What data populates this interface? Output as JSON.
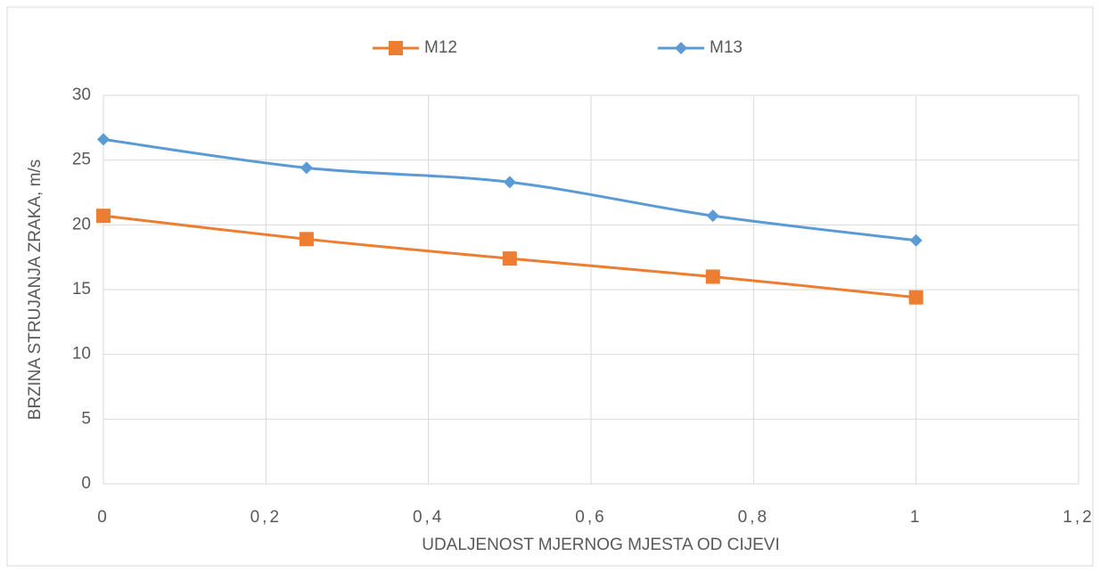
{
  "chart_data": {
    "type": "line",
    "smooth": true,
    "x": [
      0,
      0.25,
      0.5,
      0.75,
      1
    ],
    "series": [
      {
        "name": "M12",
        "color": "#ed7d31",
        "marker": "square",
        "values": [
          20.7,
          18.9,
          17.4,
          16.0,
          14.4
        ]
      },
      {
        "name": "M13",
        "color": "#5b9bd5",
        "marker": "diamond",
        "values": [
          26.6,
          24.4,
          23.3,
          20.7,
          18.8
        ]
      }
    ],
    "xlabel": "UDALJENOST MJERNOG MJESTA OD CIJEVI",
    "ylabel": "BRZINA STRUJANJA ZRAKA, m/s",
    "xlim": [
      0,
      1.2
    ],
    "xticks": [
      0,
      {
        "value": 0.2,
        "label": "0,2"
      },
      {
        "value": 0.4,
        "label": "0,4"
      },
      {
        "value": 0.6,
        "label": "0,6"
      },
      {
        "value": 0.8,
        "label": "0,8"
      },
      1,
      {
        "value": 1.2,
        "label": "1,2"
      }
    ],
    "ylim": [
      0,
      30
    ],
    "yticks": [
      0,
      5,
      10,
      15,
      20,
      25,
      30
    ],
    "grid": true,
    "legend": "top"
  }
}
